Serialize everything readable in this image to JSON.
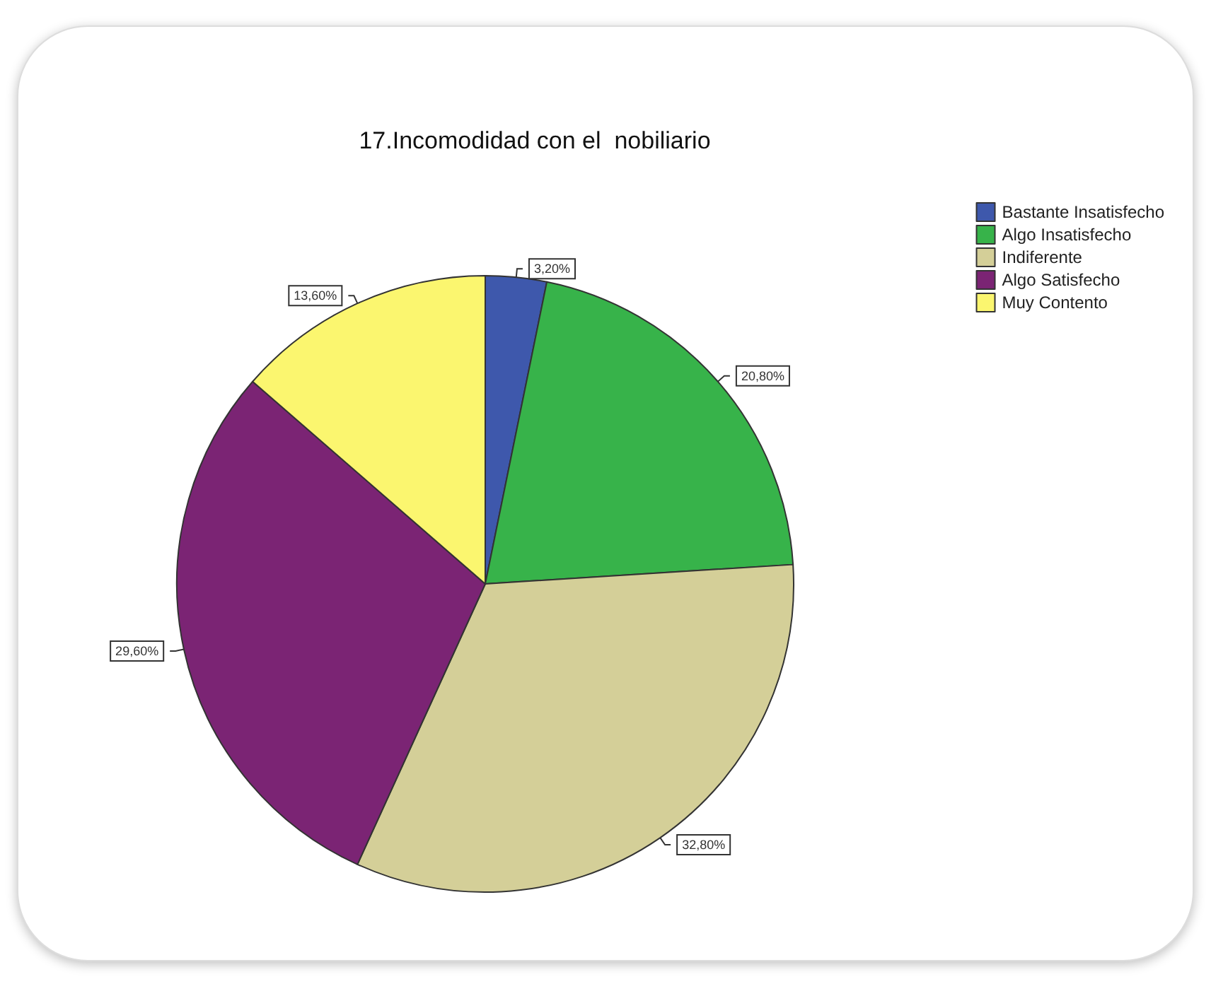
{
  "chart_data": {
    "type": "pie",
    "title": "17.Incomodidad con el  nobiliario",
    "categories": [
      "Bastante Insatisfecho",
      "Algo Insatisfecho",
      "Indiferente",
      "Algo Satisfecho",
      "Muy Contento"
    ],
    "values": [
      3.2,
      20.8,
      32.8,
      29.6,
      13.6
    ],
    "colors": [
      "#3e58ac",
      "#37b34a",
      "#d4cf98",
      "#7b2474",
      "#fbf66f"
    ],
    "value_labels": [
      "3,20%",
      "20,80%",
      "32,80%",
      "29,60%",
      "13,60%"
    ],
    "legend": "top right"
  }
}
